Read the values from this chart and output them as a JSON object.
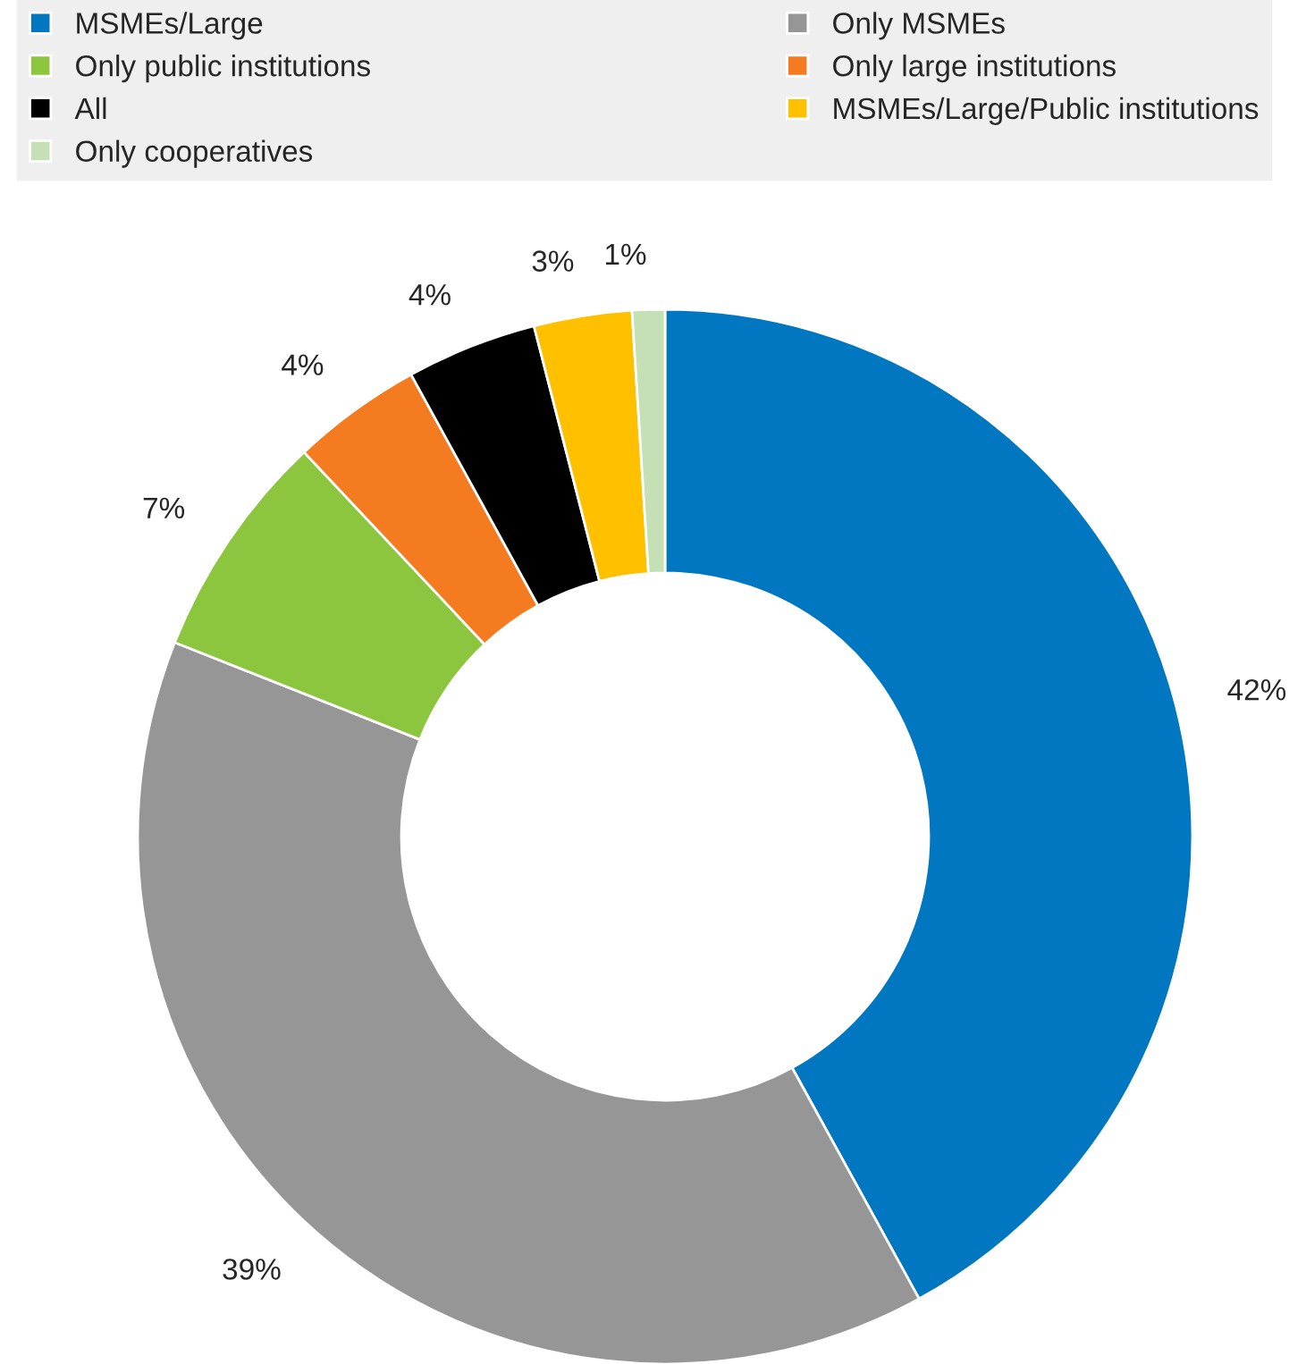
{
  "chart_data": {
    "type": "donut",
    "categories": [
      "MSMEs/Large",
      "Only MSMEs",
      "Only public institutions",
      "Only large institutions",
      "All",
      "MSMEs/Large/Public institutions",
      "Only cooperatives"
    ],
    "values": [
      42,
      39,
      7,
      4,
      4,
      3,
      1
    ],
    "colors": [
      "#0077c0",
      "#969696",
      "#8cc63f",
      "#f47b20",
      "#000000",
      "#ffc000",
      "#c5e0b4"
    ],
    "value_labels": [
      "42%",
      "39%",
      "7%",
      "4%",
      "4%",
      "3%",
      "1%"
    ],
    "legend": "top"
  }
}
